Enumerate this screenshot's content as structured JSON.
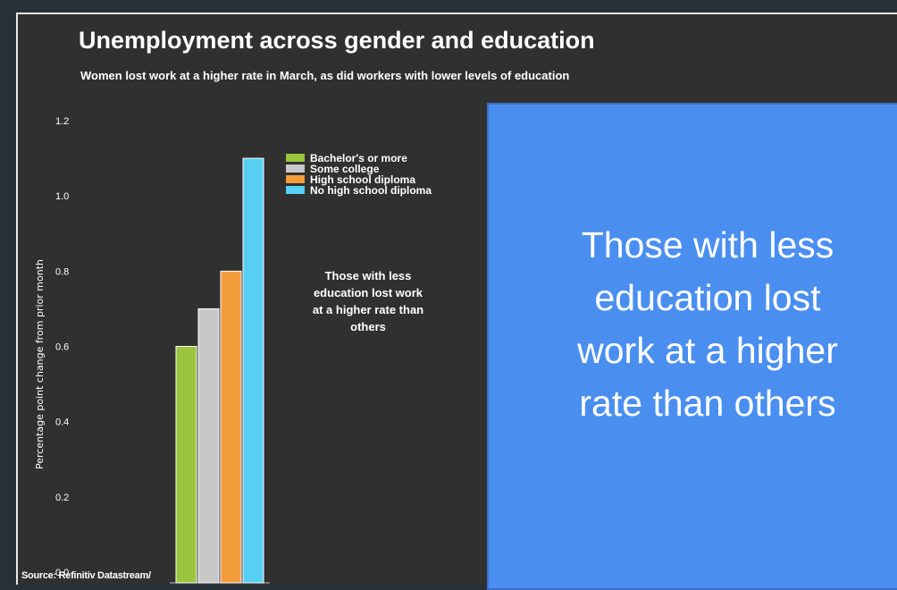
{
  "callout": {
    "text": "Those with less\neducation lost\nwork at a higher\nrate than others"
  },
  "chart_data": {
    "type": "bar",
    "title": "Unemployment across gender and education",
    "subtitle": "Women lost work at a higher rate in March, as did workers with lower levels of education",
    "ylabel": "Percentage point change from prior month",
    "xlabel": "",
    "ylim": [
      0,
      1.2
    ],
    "yticks": [
      "0.0",
      "0.2",
      "0.4",
      "0.6",
      "0.8",
      "1.0",
      "1.2"
    ],
    "categories": [
      "Bachelor's or more",
      "Some college",
      "High school diploma",
      "No high school diploma"
    ],
    "values": [
      0.6,
      0.7,
      0.8,
      1.1
    ],
    "colors": [
      "#9bc53d",
      "#c8c8c8",
      "#f39c3c",
      "#56cff2"
    ],
    "legend": {
      "placement": "top-right",
      "entries": [
        "Bachelor's or more",
        "Some college",
        "High school diploma",
        "No high school diploma"
      ]
    },
    "annotation": "Those with less education lost work at a higher rate than others",
    "source": "Source: Refinitiv Datastream/",
    "grid": false
  }
}
